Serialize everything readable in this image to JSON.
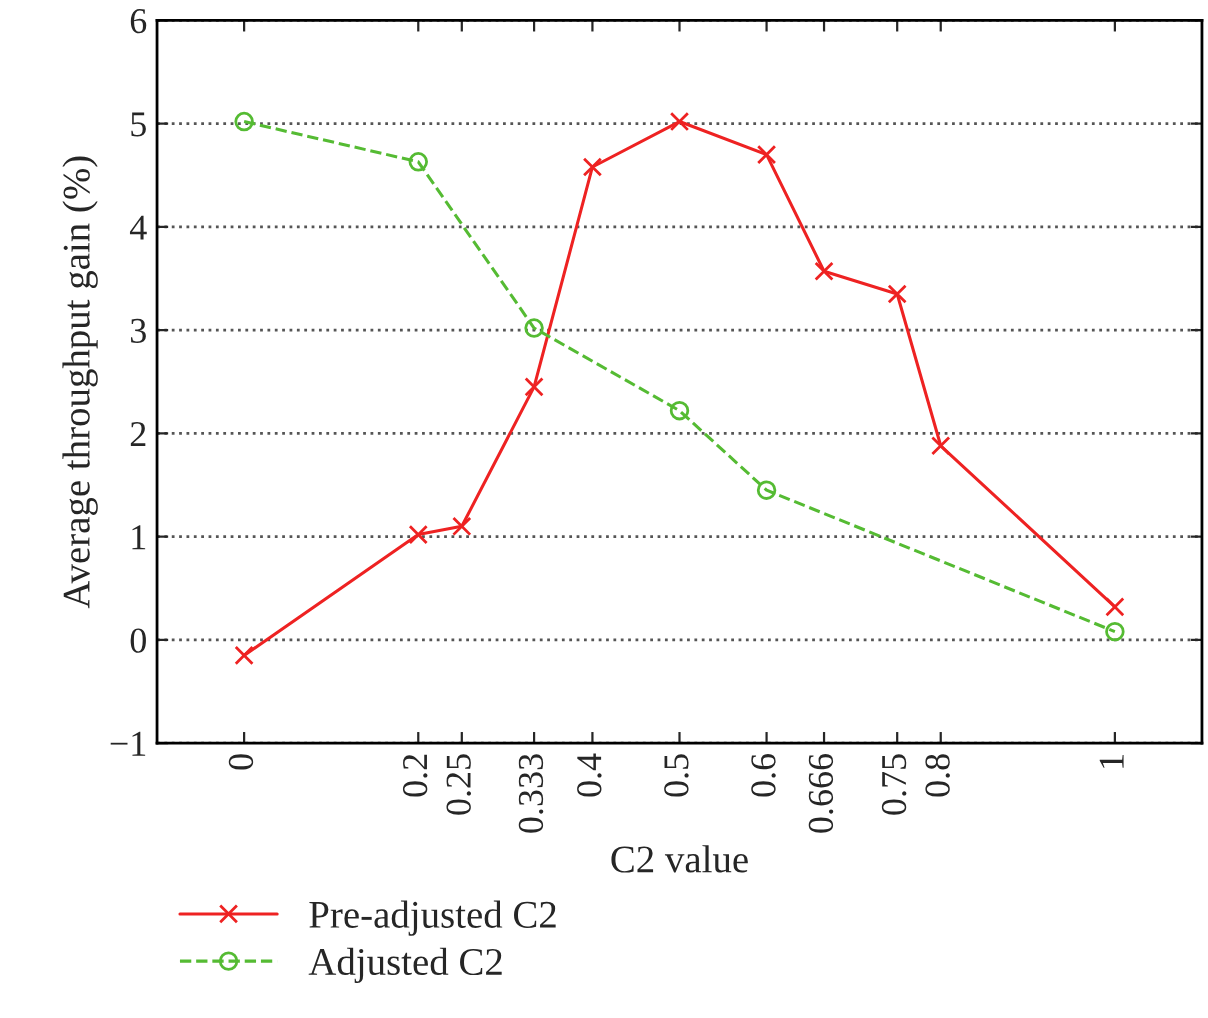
{
  "chart_data": {
    "type": "line",
    "xlabel": "C2 value",
    "ylabel": "Average throughput gain (%)",
    "series": [
      {
        "name": "Pre-adjusted C2",
        "color": "#ee2222",
        "marker": "cross",
        "line_style": "solid",
        "x": [
          0,
          0.2,
          0.25,
          0.333,
          0.4,
          0.5,
          0.6,
          0.666,
          0.75,
          0.8,
          1
        ],
        "values": [
          -0.15,
          1.02,
          1.1,
          2.45,
          4.58,
          5.02,
          4.7,
          3.57,
          3.35,
          1.88,
          0.32
        ]
      },
      {
        "name": "Adjusted C2",
        "color": "#55bb33",
        "marker": "circle",
        "line_style": "dashed",
        "x": [
          0,
          0.2,
          0.333,
          0.5,
          0.6,
          1
        ],
        "values": [
          5.02,
          4.63,
          3.02,
          2.22,
          1.45,
          0.08
        ]
      }
    ],
    "xlim": [
      -0.1,
      1.1
    ],
    "ylim": [
      -1,
      6
    ],
    "xticks": [
      0,
      0.2,
      0.25,
      0.333,
      0.4,
      0.5,
      0.6,
      0.666,
      0.75,
      0.8,
      1
    ],
    "yticks": [
      {
        "value": -1,
        "label": "−1"
      },
      0,
      1,
      2,
      3,
      4,
      5,
      6
    ],
    "grid": "y",
    "legend": "bottom"
  }
}
